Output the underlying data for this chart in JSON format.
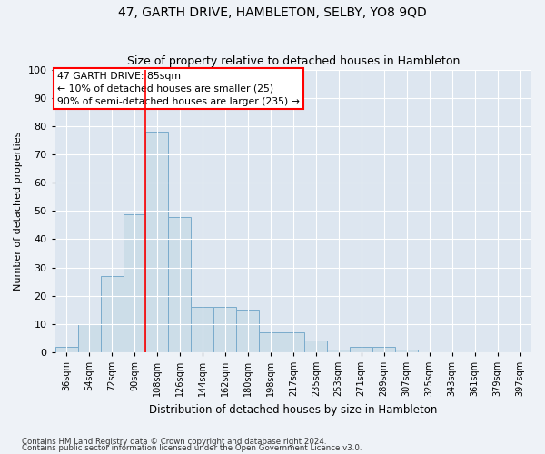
{
  "title": "47, GARTH DRIVE, HAMBLETON, SELBY, YO8 9QD",
  "subtitle": "Size of property relative to detached houses in Hambleton",
  "xlabel": "Distribution of detached houses by size in Hambleton",
  "ylabel": "Number of detached properties",
  "bar_labels": [
    "36sqm",
    "54sqm",
    "72sqm",
    "90sqm",
    "108sqm",
    "126sqm",
    "144sqm",
    "162sqm",
    "180sqm",
    "198sqm",
    "217sqm",
    "235sqm",
    "253sqm",
    "271sqm",
    "289sqm",
    "307sqm",
    "325sqm",
    "343sqm",
    "361sqm",
    "379sqm",
    "397sqm"
  ],
  "bar_values": [
    2,
    10,
    27,
    49,
    78,
    48,
    16,
    16,
    15,
    7,
    7,
    4,
    1,
    2,
    2,
    1,
    0,
    0,
    0,
    0,
    0
  ],
  "bar_color": "#ccdde8",
  "bar_edge_color": "#7aabcc",
  "ylim": [
    0,
    100
  ],
  "yticks": [
    0,
    10,
    20,
    30,
    40,
    50,
    60,
    70,
    80,
    90,
    100
  ],
  "property_label": "47 GARTH DRIVE: 85sqm",
  "annotation_line1": "← 10% of detached houses are smaller (25)",
  "annotation_line2": "90% of semi-detached houses are larger (235) →",
  "vline_x_index": 3.5,
  "footnote1": "Contains HM Land Registry data © Crown copyright and database right 2024.",
  "footnote2": "Contains public sector information licensed under the Open Government Licence v3.0.",
  "background_color": "#eef2f7",
  "plot_bg_color": "#dde6f0"
}
